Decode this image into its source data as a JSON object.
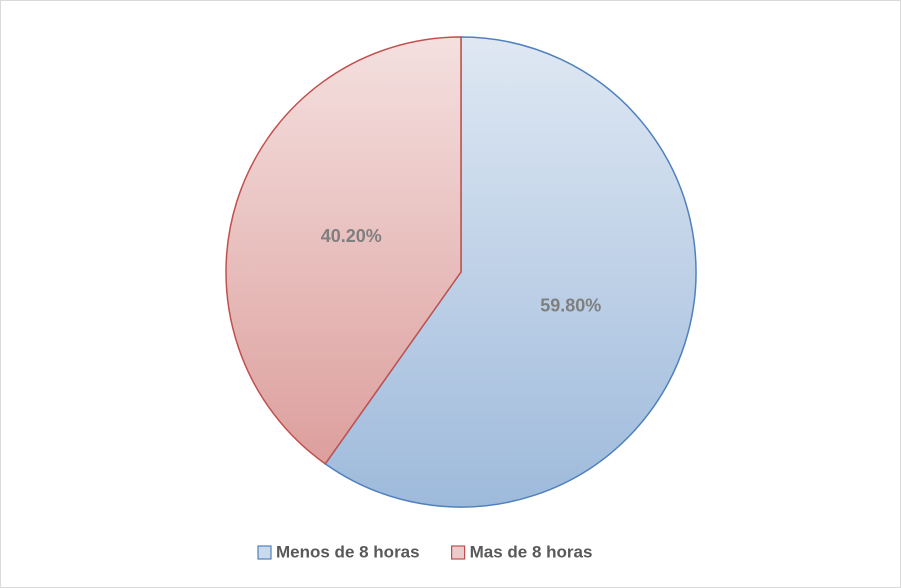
{
  "chart_data": {
    "type": "pie",
    "categories": [
      "Menos de 8 horas",
      "Mas de 8 horas"
    ],
    "values": [
      59.8,
      40.2
    ],
    "value_labels": [
      "59.80%",
      "40.20%"
    ],
    "colors": [
      "#4f81bd",
      "#c0504d"
    ],
    "legend": "bottom"
  }
}
